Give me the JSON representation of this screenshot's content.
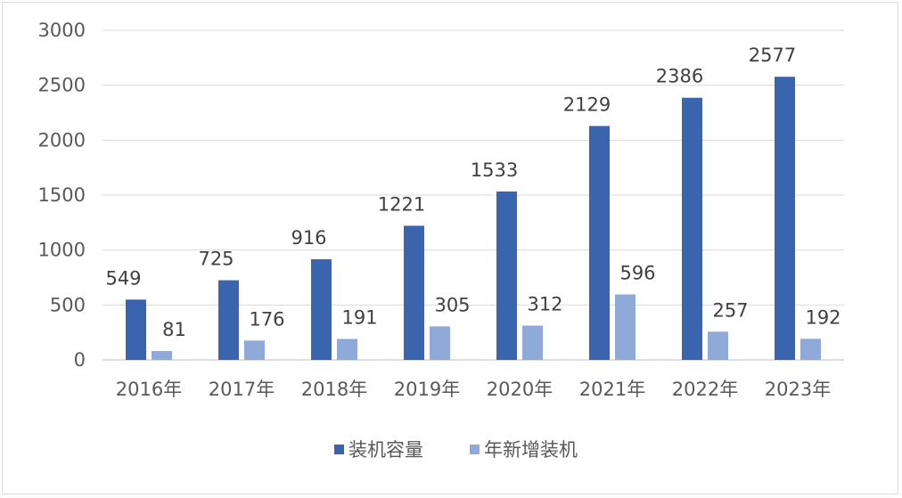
{
  "chart_data": {
    "type": "bar",
    "categories": [
      "2016年",
      "2017年",
      "2018年",
      "2019年",
      "2020年",
      "2021年",
      "2022年",
      "2023年"
    ],
    "series": [
      {
        "name": "装机容量",
        "color": "#3a64ad",
        "values": [
          549,
          725,
          916,
          1221,
          1533,
          2129,
          2386,
          2577
        ]
      },
      {
        "name": "年新增装机",
        "color": "#8fa9d9",
        "values": [
          81,
          176,
          191,
          305,
          312,
          596,
          257,
          192
        ]
      }
    ],
    "yticks": [
      0,
      500,
      1000,
      1500,
      2000,
      2500,
      3000
    ],
    "ylim": [
      0,
      3000
    ],
    "grid": true,
    "legend_position": "bottom"
  }
}
